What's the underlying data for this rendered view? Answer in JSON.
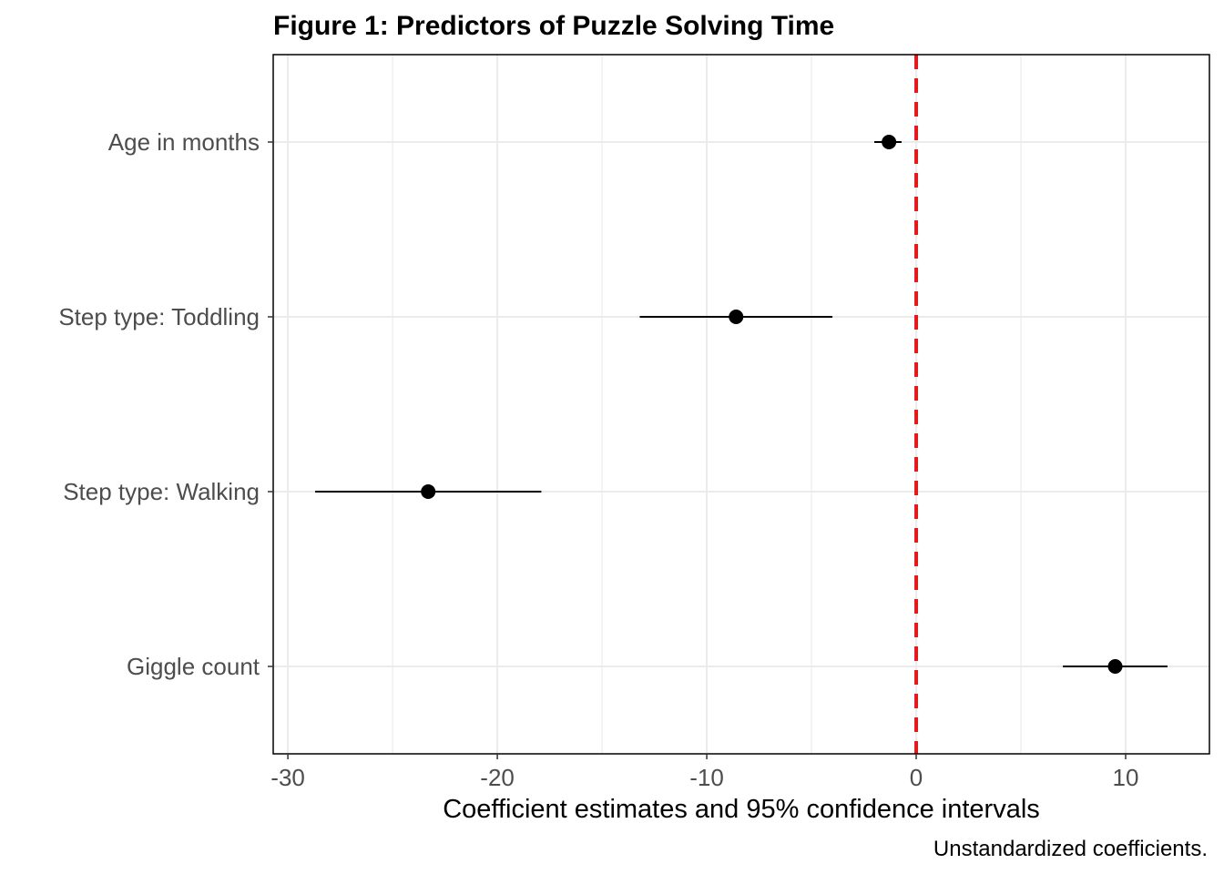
{
  "chart_data": {
    "type": "coefficient-plot",
    "title": "Figure 1: Predictors of Puzzle Solving Time",
    "xlabel": "Coefficient estimates and 95% confidence intervals",
    "caption": "Unstandardized coefficients.",
    "xlim": [
      -30.7,
      14.0
    ],
    "xticks": [
      -30,
      -20,
      -10,
      0,
      10
    ],
    "xtick_labels": [
      "-30",
      "-20",
      "-10",
      "0",
      "10"
    ],
    "reference_line": {
      "x": 0,
      "color": "#e31a1c",
      "style": "dashed"
    },
    "grid": true,
    "categories": [
      "Age in months",
      "Step type: Toddling",
      "Step type: Walking",
      "Giggle count"
    ],
    "estimates": [
      -1.3,
      -8.6,
      -23.3,
      9.5
    ],
    "ci_low": [
      -2.0,
      -13.2,
      -28.7,
      7.0
    ],
    "ci_high": [
      -0.7,
      -4.0,
      -17.9,
      12.0
    ]
  }
}
